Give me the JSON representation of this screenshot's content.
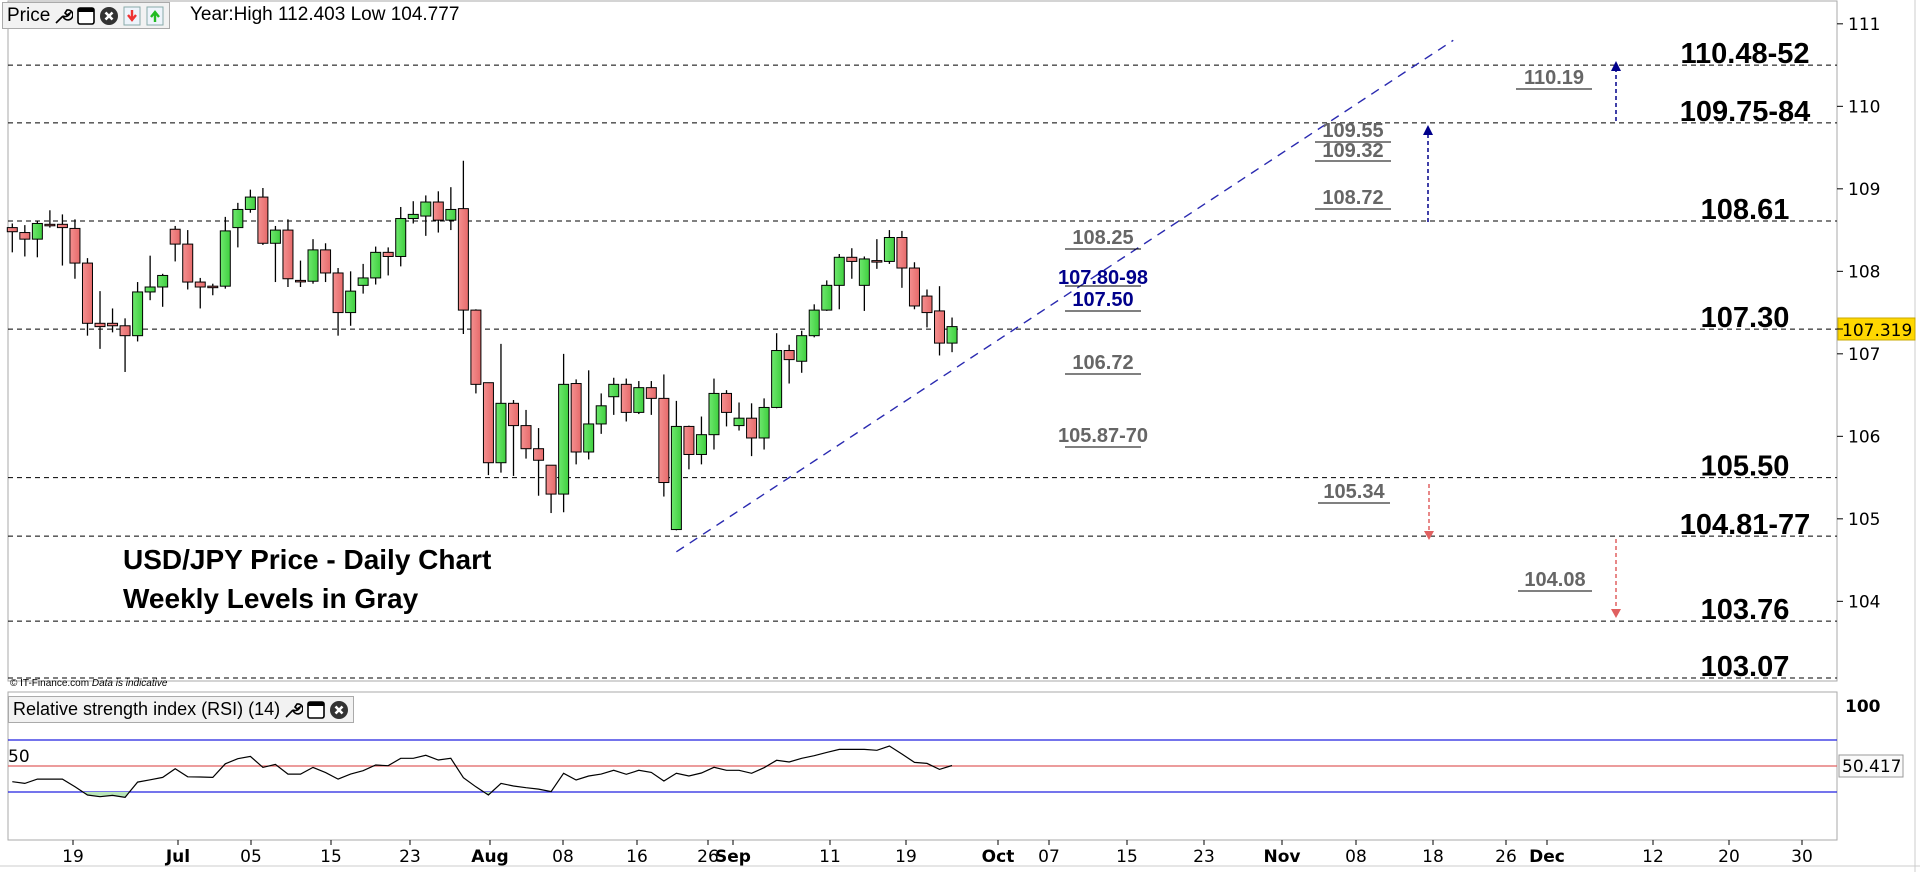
{
  "header": {
    "price_label": "Price",
    "year_info": "Year:High 112.403 Low 104.777",
    "icons": [
      "wrench-icon",
      "window-icon",
      "close-icon",
      "move-down-icon",
      "move-up-icon"
    ]
  },
  "rsi_panel": {
    "title": "Relative strength index (RSI) (14)",
    "level_50_label": "50",
    "axis_top_label": "100",
    "current_value": "50.417"
  },
  "copyright": {
    "source": "© IT-Finance.com",
    "note": "Data is indicative"
  },
  "chart_title": {
    "line1": "USD/JPY Price - Daily Chart",
    "line2": "Weekly Levels in Gray"
  },
  "current_price": "107.319",
  "colors": {
    "up": "#4fd84f",
    "down": "#f07b7b",
    "trend": "#2a2ab0",
    "rsi_band": "#2020e0",
    "rsi_mid": "#e06060",
    "price_tag": "#ffd700",
    "weekly_gray": "#666666",
    "weekly_blue": "#00008b",
    "arrow_down": "#e06060"
  },
  "price_axis": {
    "ticks": [
      "111",
      "110",
      "109",
      "108",
      "107",
      "106",
      "105",
      "104"
    ]
  },
  "x_axis": {
    "labels": [
      "19",
      "Jul",
      "05",
      "15",
      "23",
      "Aug",
      "08",
      "16",
      "26",
      "Sep",
      "11",
      "19",
      "Oct",
      "07",
      "15",
      "23",
      "Nov",
      "08",
      "18",
      "26",
      "Dec",
      "12",
      "20",
      "30"
    ],
    "bold": [
      false,
      true,
      false,
      false,
      false,
      true,
      false,
      false,
      false,
      true,
      false,
      false,
      true,
      false,
      false,
      false,
      true,
      false,
      false,
      false,
      true,
      false,
      false,
      false
    ]
  },
  "key_levels": [
    {
      "label": "110.48-52",
      "price": 110.5
    },
    {
      "label": "109.75-84",
      "price": 109.8
    },
    {
      "label": "108.61",
      "price": 108.61
    },
    {
      "label": "107.30",
      "price": 107.3
    },
    {
      "label": "105.50",
      "price": 105.5
    },
    {
      "label": "104.81-77",
      "price": 104.79
    },
    {
      "label": "103.76",
      "price": 103.76
    },
    {
      "label": "103.07",
      "price": 103.07
    }
  ],
  "weekly_levels": [
    "110.19",
    "109.55",
    "109.32",
    "108.72",
    "108.25",
    "107.80-98",
    "107.50",
    "106.72",
    "105.87-70",
    "105.34",
    "104.08"
  ],
  "chart_data": {
    "type": "candlestick",
    "title": "USD/JPY Price - Daily Chart",
    "ylim": [
      102.9,
      111.2
    ],
    "candles_ohlc": [
      [
        108.53,
        108.58,
        108.23,
        108.48
      ],
      [
        108.47,
        108.56,
        108.18,
        108.39
      ],
      [
        108.39,
        108.61,
        108.17,
        108.58
      ],
      [
        108.57,
        108.74,
        108.53,
        108.56
      ],
      [
        108.57,
        108.69,
        108.07,
        108.53
      ],
      [
        108.52,
        108.63,
        107.91,
        108.1
      ],
      [
        108.1,
        108.16,
        107.22,
        107.37
      ],
      [
        107.37,
        107.76,
        107.06,
        107.33
      ],
      [
        107.37,
        107.55,
        107.26,
        107.34
      ],
      [
        107.34,
        107.43,
        106.78,
        107.22
      ],
      [
        107.22,
        107.87,
        107.15,
        107.75
      ],
      [
        107.75,
        108.19,
        107.65,
        107.81
      ],
      [
        107.81,
        107.97,
        107.57,
        107.95
      ],
      [
        108.51,
        108.55,
        108.12,
        108.33
      ],
      [
        108.33,
        108.5,
        107.78,
        107.87
      ],
      [
        107.87,
        107.92,
        107.55,
        107.81
      ],
      [
        107.82,
        107.85,
        107.71,
        107.81
      ],
      [
        107.82,
        108.66,
        107.79,
        108.49
      ],
      [
        108.53,
        108.83,
        108.29,
        108.75
      ],
      [
        108.75,
        108.99,
        108.71,
        108.9
      ],
      [
        108.9,
        109.01,
        108.32,
        108.34
      ],
      [
        108.34,
        108.55,
        107.87,
        108.5
      ],
      [
        108.5,
        108.63,
        107.81,
        107.91
      ],
      [
        107.89,
        108.13,
        107.81,
        107.88
      ],
      [
        107.88,
        108.39,
        107.85,
        108.26
      ],
      [
        108.26,
        108.34,
        107.87,
        107.98
      ],
      [
        107.98,
        108.04,
        107.22,
        107.5
      ],
      [
        107.5,
        108.0,
        107.34,
        107.76
      ],
      [
        107.83,
        108.09,
        107.73,
        107.92
      ],
      [
        107.92,
        108.3,
        107.84,
        108.23
      ],
      [
        108.23,
        108.29,
        107.95,
        108.18
      ],
      [
        108.18,
        108.78,
        108.06,
        108.64
      ],
      [
        108.64,
        108.85,
        108.58,
        108.69
      ],
      [
        108.67,
        108.92,
        108.43,
        108.84
      ],
      [
        108.84,
        108.97,
        108.47,
        108.62
      ],
      [
        108.62,
        109.02,
        108.5,
        108.75
      ],
      [
        108.76,
        109.34,
        107.24,
        107.53
      ],
      [
        107.53,
        107.54,
        106.52,
        106.63
      ],
      [
        106.65,
        106.65,
        105.53,
        105.68
      ],
      [
        105.68,
        107.12,
        105.56,
        106.4
      ],
      [
        106.4,
        106.44,
        105.52,
        106.13
      ],
      [
        106.13,
        106.32,
        105.73,
        105.85
      ],
      [
        105.85,
        106.1,
        105.28,
        105.71
      ],
      [
        105.65,
        105.65,
        105.07,
        105.3
      ],
      [
        105.3,
        107.0,
        105.08,
        106.63
      ],
      [
        106.64,
        106.69,
        105.66,
        105.81
      ],
      [
        105.81,
        106.8,
        105.72,
        106.15
      ],
      [
        106.15,
        106.52,
        106.03,
        106.37
      ],
      [
        106.48,
        106.71,
        106.26,
        106.63
      ],
      [
        106.63,
        106.7,
        106.18,
        106.29
      ],
      [
        106.29,
        106.67,
        106.27,
        106.59
      ],
      [
        106.59,
        106.67,
        106.26,
        106.46
      ],
      [
        106.46,
        106.75,
        105.27,
        105.44
      ],
      [
        104.87,
        106.43,
        104.86,
        106.12
      ],
      [
        106.12,
        106.13,
        105.6,
        105.78
      ],
      [
        105.78,
        106.24,
        105.66,
        106.02
      ],
      [
        106.02,
        106.7,
        105.84,
        106.52
      ],
      [
        106.52,
        106.56,
        106.12,
        106.29
      ],
      [
        106.13,
        106.41,
        106.07,
        106.22
      ],
      [
        106.22,
        106.4,
        105.76,
        105.98
      ],
      [
        105.98,
        106.46,
        105.84,
        106.35
      ],
      [
        106.35,
        107.25,
        106.34,
        107.04
      ],
      [
        107.04,
        107.11,
        106.64,
        106.93
      ],
      [
        106.91,
        107.28,
        106.77,
        107.22
      ],
      [
        107.22,
        107.6,
        107.2,
        107.53
      ],
      [
        107.53,
        107.89,
        107.52,
        107.83
      ],
      [
        107.83,
        108.21,
        107.54,
        108.17
      ],
      [
        108.17,
        108.28,
        107.91,
        108.12
      ],
      [
        107.83,
        108.18,
        107.52,
        108.15
      ],
      [
        108.13,
        108.39,
        108.03,
        108.12
      ],
      [
        108.12,
        108.5,
        108.09,
        108.41
      ],
      [
        108.41,
        108.49,
        107.8,
        108.04
      ],
      [
        108.04,
        108.11,
        107.54,
        107.58
      ],
      [
        107.7,
        107.78,
        107.32,
        107.5
      ],
      [
        107.52,
        107.82,
        106.98,
        107.13
      ],
      [
        107.13,
        107.44,
        107.02,
        107.33
      ]
    ],
    "trendline": {
      "from_candle": 53,
      "from_price": 104.6,
      "to_candle": 115,
      "to_price": 110.8
    },
    "rsi": {
      "period": 14,
      "bands": [
        30,
        50,
        70
      ],
      "values": [
        37.9,
        36.6,
        39.9,
        39.9,
        39.9,
        34.0,
        27.7,
        26.4,
        27.4,
        25.9,
        37.6,
        39.4,
        41.2,
        47.9,
        41.7,
        41.5,
        41.2,
        51.7,
        55.6,
        57.4,
        48.9,
        51.2,
        43.8,
        43.8,
        48.9,
        44.9,
        39.9,
        43.8,
        46.4,
        50.8,
        50.2,
        55.9,
        55.9,
        58.2,
        54.6,
        55.9,
        41.0,
        34.0,
        27.7,
        36.6,
        34.6,
        33.3,
        32.2,
        30.3,
        44.4,
        39.2,
        42.3,
        43.8,
        46.7,
        43.6,
        46.7,
        45.1,
        38.5,
        44.4,
        42.3,
        44.6,
        49.0,
        46.7,
        46.7,
        44.4,
        48.7,
        54.4,
        53.1,
        55.9,
        57.9,
        60.5,
        62.8,
        62.8,
        62.8,
        62.1,
        65.4,
        59.2,
        52.8,
        52.0,
        47.4,
        50.4
      ]
    }
  }
}
